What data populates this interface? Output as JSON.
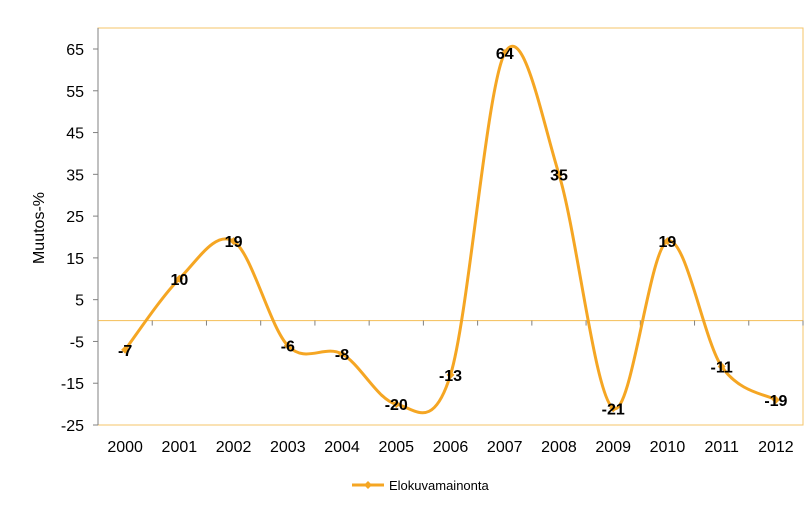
{
  "chart_data": {
    "type": "line",
    "smooth": true,
    "title": "",
    "xlabel": "",
    "ylabel": "Muutos-%",
    "x": [
      "2000",
      "2001",
      "2002",
      "2003",
      "2004",
      "2005",
      "2006",
      "2007",
      "2008",
      "2009",
      "2010",
      "2011",
      "2012"
    ],
    "ylim": [
      -25,
      65
    ],
    "yticks": [
      -25,
      -15,
      -5,
      5,
      15,
      25,
      35,
      45,
      55,
      65
    ],
    "grid": false,
    "legend_position": "bottom",
    "series": [
      {
        "name": "Elokuvamainonta",
        "color": "#F5A623",
        "values": [
          -7,
          10,
          19,
          -6,
          -8,
          -20,
          -13,
          64,
          35,
          -21,
          19,
          -11,
          -19
        ],
        "labels": [
          "-7",
          "10",
          "19",
          "-6",
          "-8",
          "-20",
          "-13",
          "64",
          "35",
          "-21",
          "19",
          "-11",
          "-19"
        ]
      }
    ],
    "plot_border_color": "#F5C56A"
  }
}
